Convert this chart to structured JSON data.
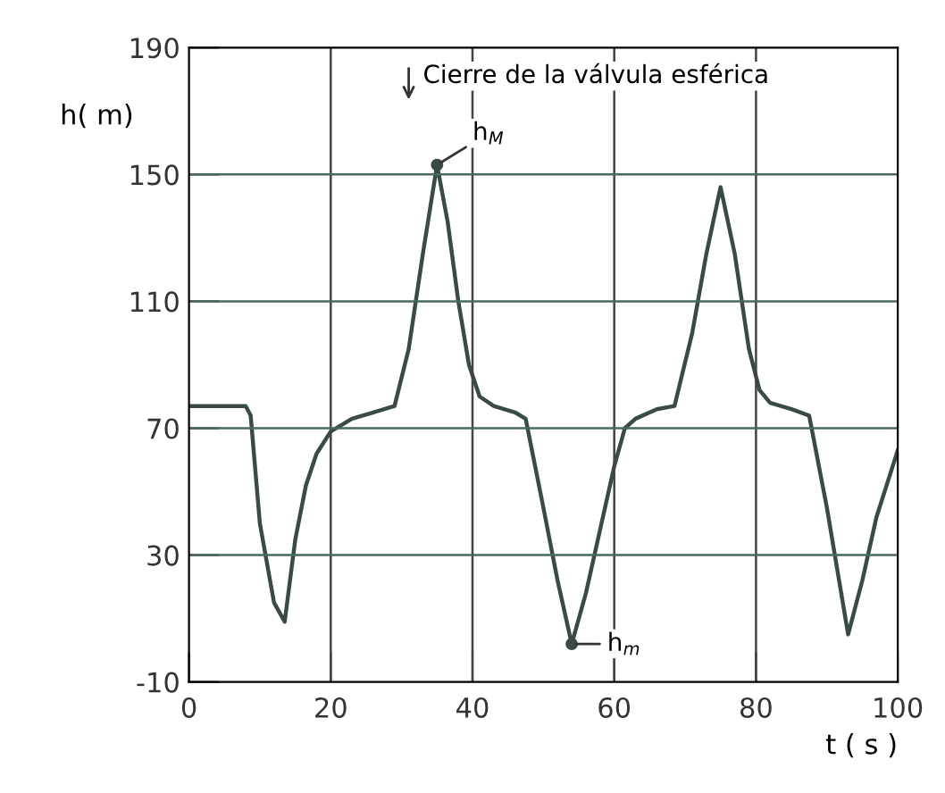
{
  "chart_data": {
    "type": "line",
    "xlabel": "t ( s )",
    "ylabel": "h( m)",
    "x": [
      0,
      8,
      8.7,
      10,
      12,
      13.5,
      15,
      16.5,
      18,
      20,
      23,
      26,
      29,
      31,
      33,
      35,
      36.5,
      38,
      39.5,
      41,
      43,
      46,
      47.5,
      50,
      52,
      54,
      56,
      58,
      60,
      61.5,
      63,
      66,
      68.5,
      71,
      73,
      75,
      77,
      79,
      80.5,
      82,
      85,
      87.5,
      90,
      93,
      95,
      97,
      100
    ],
    "series": [
      {
        "color": "#3a4a45",
        "values": [
          77,
          77,
          74,
          40,
          15,
          9,
          35,
          52,
          62,
          69,
          73,
          75,
          77,
          95,
          125,
          153,
          135,
          110,
          90,
          80,
          77,
          75,
          73,
          45,
          22,
          2,
          18,
          38,
          58,
          70,
          73,
          76,
          77,
          100,
          125,
          146,
          125,
          95,
          82,
          78,
          76,
          74,
          45,
          5,
          22,
          42,
          63
        ]
      }
    ],
    "xlim": [
      0,
      100
    ],
    "ylim": [
      -10,
      190
    ],
    "xticks": [
      0,
      20,
      40,
      60,
      80,
      100
    ],
    "yticks": [
      -10,
      30,
      70,
      110,
      150,
      190
    ],
    "grid": true,
    "marker": "none",
    "line_style": "solid",
    "annotations": [
      "Cierre de la válvula esférica",
      {
        "text": "h$_{M}$",
        "x": 35,
        "y": 153
      },
      {
        "text": "h$_{m}$",
        "x": 54,
        "y": 2
      }
    ]
  }
}
